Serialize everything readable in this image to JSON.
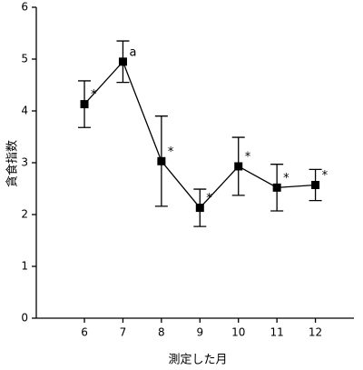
{
  "chart_data": {
    "type": "line",
    "x": [
      6,
      7,
      8,
      9,
      10,
      11,
      12
    ],
    "values": [
      4.13,
      4.95,
      3.03,
      2.13,
      2.93,
      2.52,
      2.57
    ],
    "errors": [
      0.45,
      0.4,
      0.87,
      0.36,
      0.56,
      0.45,
      0.3
    ],
    "annotations": [
      "*",
      "a",
      "*",
      "*",
      "*",
      "*",
      "*"
    ],
    "color": "#000000",
    "xlabel": "測定した月",
    "ylabel": "貪食指数",
    "xlim": [
      4.75,
      13
    ],
    "xticks": [
      6,
      7,
      8,
      9,
      10,
      11,
      12
    ],
    "ylim": [
      0,
      6
    ],
    "yticks": [
      0,
      1,
      2,
      3,
      4,
      5,
      6
    ],
    "grid": false
  }
}
